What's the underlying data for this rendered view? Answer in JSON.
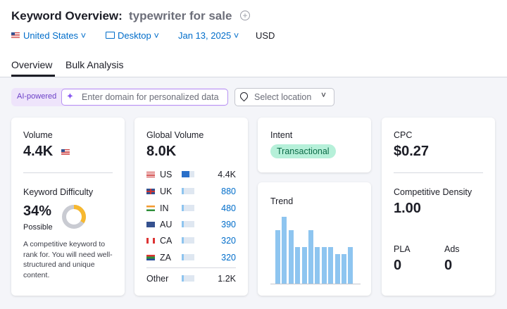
{
  "header": {
    "label": "Keyword Overview:",
    "keyword": "typewriter for sale"
  },
  "filters": {
    "database": "United States",
    "device": "Desktop",
    "date": "Jan 13, 2025",
    "currency": "USD"
  },
  "tabs": [
    "Overview",
    "Bulk Analysis"
  ],
  "toolbar": {
    "badge": "AI-powered",
    "domain_placeholder": "Enter domain for personalized data",
    "location_placeholder": "Select location"
  },
  "volume": {
    "label": "Volume",
    "value": "4.4K"
  },
  "keyword_difficulty": {
    "label": "Keyword Difficulty",
    "value": 34,
    "value_label": "34%",
    "level": "Possible",
    "description": "A competitive keyword to rank for. You will need well-structured and unique content."
  },
  "global_volume": {
    "label": "Global Volume",
    "value": "8.0K",
    "countries": [
      {
        "code": "US",
        "volume": "4.4K",
        "share": 60
      },
      {
        "code": "UK",
        "volume": "880",
        "share": 15
      },
      {
        "code": "IN",
        "volume": "480",
        "share": 15
      },
      {
        "code": "AU",
        "volume": "390",
        "share": 15
      },
      {
        "code": "CA",
        "volume": "320",
        "share": 15
      },
      {
        "code": "ZA",
        "volume": "320",
        "share": 15
      }
    ],
    "other": {
      "label": "Other",
      "volume": "1.2K",
      "share": 15
    }
  },
  "intent": {
    "label": "Intent",
    "values": [
      "Transactional"
    ]
  },
  "trend": {
    "label": "Trend",
    "values": [
      80,
      100,
      80,
      55,
      55,
      80,
      55,
      55,
      55,
      44,
      44,
      55
    ]
  },
  "cpc": {
    "label": "CPC",
    "value": "$0.27"
  },
  "competitive_density": {
    "label": "Competitive Density",
    "value": "1.00"
  },
  "pla": {
    "label": "PLA",
    "value": "0"
  },
  "ads": {
    "label": "Ads",
    "value": "0"
  }
}
